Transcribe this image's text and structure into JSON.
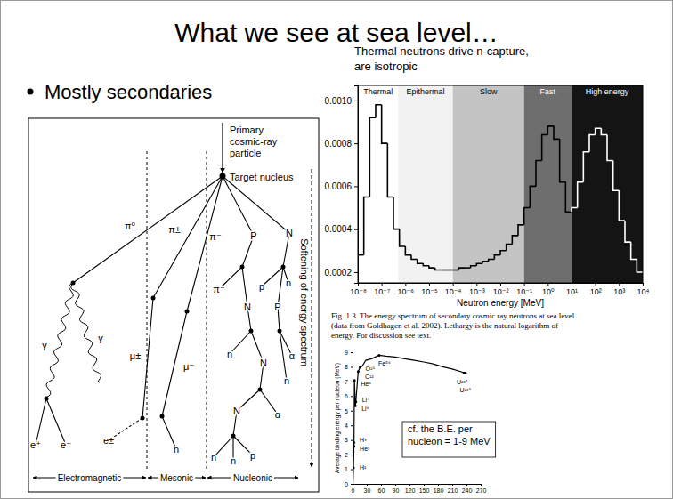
{
  "slide": {
    "title": "What we see at sea level…",
    "bullets": [
      "Mostly secondaries"
    ]
  },
  "diagram": {
    "primary": [
      "Primary",
      "cosmic-ray",
      "particle"
    ],
    "target": "Target nucleus",
    "side_label": "Softening of energy spectrum",
    "columns": [
      "Electromagnetic",
      "Mesonic",
      "Nucleonic"
    ],
    "particles": [
      "π⁰",
      "π±",
      "π⁻",
      "γ",
      "γ",
      "e⁺",
      "e⁻",
      "μ±",
      "μ⁻",
      "e±",
      "n",
      "P",
      "N",
      "π⁻",
      "N",
      "p",
      "n",
      "P",
      "N",
      "n",
      "α",
      "n",
      "N",
      "α",
      "n",
      "n",
      "p"
    ]
  },
  "chart_data": [
    {
      "type": "histogram",
      "title": [
        "Thermal neutrons drive n-capture,",
        "are isotropic"
      ],
      "x_label": "Neutron energy [MeV]",
      "caption": [
        "Fig. 1.3. The energy spectrum of secondary cosmic ray neutrons at sea level",
        "(data from Goldhagen et al. 2002). Lethargy is the natural logarithm of",
        "energy. For discussion see text."
      ],
      "log": "x",
      "bins": [
        1e-08,
        1.778e-08,
        3.162e-08,
        5.623e-08,
        1e-07,
        1.778e-07,
        3.162e-07,
        5.623e-07,
        1e-06,
        1.778e-06,
        3.162e-06,
        5.623e-06,
        1e-05,
        1.778e-05,
        3.162e-05,
        5.623e-05,
        0.0001,
        0.0001778,
        0.0003162,
        0.0005623,
        0.001,
        0.001778,
        0.003162,
        0.005623,
        0.01,
        0.01778,
        0.03162,
        0.05623,
        0.1,
        0.1778,
        0.3162,
        0.5623,
        1,
        1.778,
        3.162,
        5.623,
        10,
        17.78,
        31.62,
        56.23,
        100,
        177.8,
        316.2,
        562.3,
        1000,
        1778,
        3162,
        5623,
        10000
      ],
      "values": [
        0.00028,
        0.00055,
        0.00092,
        0.00098,
        0.0008,
        0.00055,
        0.0004,
        0.00032,
        0.00028,
        0.00026,
        0.00024,
        0.00023,
        0.00022,
        0.00021,
        0.00021,
        0.00021,
        0.00021,
        0.00022,
        0.00022,
        0.00023,
        0.00024,
        0.00025,
        0.00026,
        0.00028,
        0.0003,
        0.00033,
        0.00037,
        0.00042,
        0.0005,
        0.0006,
        0.00072,
        0.00084,
        0.00088,
        0.00082,
        0.00062,
        0.00048,
        0.0005,
        0.00062,
        0.00076,
        0.00084,
        0.00087,
        0.00084,
        0.00072,
        0.00058,
        0.00044,
        0.00034,
        0.00026,
        0.0002
      ],
      "colors": [
        "#000000",
        "#000000",
        "#000000",
        "#000000",
        "#000000",
        "#000000",
        "#000000",
        "#000000",
        "#000000",
        "#000000",
        "#000000",
        "#000000",
        "#000000",
        "#000000",
        "#000000",
        "#000000",
        "#000000",
        "#000000",
        "#000000",
        "#000000",
        "#000000",
        "#000000",
        "#000000",
        "#000000",
        "#000000",
        "#000000",
        "#000000",
        "#000000",
        "#000000",
        "#000000",
        "#000000",
        "#000000",
        "#000000",
        "#000000",
        "#000000",
        "#000000",
        "#ffffff",
        "#ffffff",
        "#ffffff",
        "#ffffff",
        "#ffffff",
        "#ffffff",
        "#ffffff",
        "#ffffff",
        "#ffffff",
        "#ffffff",
        "#ffffff",
        "#ffffff"
      ],
      "xlim": [
        1e-08,
        10000
      ],
      "xticks": [
        {
          "value": 1e-08,
          "label": "10⁻⁸"
        },
        {
          "value": 1e-07,
          "label": "10⁻⁷"
        },
        {
          "value": 1e-06,
          "label": "10⁻⁶"
        },
        {
          "value": 1e-05,
          "label": "10⁻⁵"
        },
        {
          "value": 0.0001,
          "label": "10⁻⁴"
        },
        {
          "value": 0.001,
          "label": "10⁻³"
        },
        {
          "value": 0.01,
          "label": "10⁻²"
        },
        {
          "value": 0.1,
          "label": "10⁻¹"
        },
        {
          "value": 1,
          "label": "10⁰"
        },
        {
          "value": 10,
          "label": "10¹"
        },
        {
          "value": 100,
          "label": "10²"
        },
        {
          "value": 1000,
          "label": "10³"
        },
        {
          "value": 10000,
          "label": "10⁴"
        }
      ],
      "ylim": [
        0.00015,
        0.00107
      ],
      "yticks": [
        0.0002,
        0.0004,
        0.0006,
        0.0008,
        {
          "value": 0.001,
          "label": "0.0010"
        }
      ],
      "regions": [
        {
          "label": "Thermal",
          "from": 1e-08,
          "to": 5e-07,
          "color": "#ffffff"
        },
        {
          "label": "Epithermal",
          "from": 5e-07,
          "to": 0.0001,
          "color": "#f2f2f2"
        },
        {
          "label": "Slow",
          "from": 0.0001,
          "to": 0.1,
          "color": "#c4c4c4"
        },
        {
          "label": "Fast",
          "from": 0.1,
          "to": 10,
          "color": "#6e6e6e"
        },
        {
          "label": "High energy",
          "from": 10,
          "to": 10000,
          "color": "#141414"
        }
      ]
    },
    {
      "type": "line",
      "y_label": "Average binding energy per nucleon (MeV)",
      "x": [
        1,
        2,
        3,
        4,
        6,
        7,
        9,
        12,
        16,
        20,
        28,
        40,
        56,
        70,
        90,
        110,
        130,
        150,
        170,
        190,
        210,
        238
      ],
      "values": [
        0,
        1.11,
        2.57,
        7.07,
        5.33,
        5.61,
        6.46,
        7.68,
        7.98,
        8.03,
        8.45,
        8.55,
        8.79,
        8.73,
        8.67,
        8.55,
        8.45,
        8.33,
        8.2,
        8.0,
        7.85,
        7.57
      ],
      "color": "#000000",
      "xlim": [
        0,
        270
      ],
      "xticks": [
        0,
        30,
        60,
        90,
        120,
        150,
        180,
        210,
        240,
        270
      ],
      "ylim": [
        0,
        9
      ],
      "yticks": [
        0,
        1,
        2,
        3,
        4,
        5,
        6,
        7,
        8,
        9
      ],
      "annotations": [
        {
          "text": "H²",
          "x": 2,
          "y": 1.11
        },
        {
          "text": "H³",
          "x": 3,
          "y": 2.83
        },
        {
          "text": "He³",
          "x": 3,
          "y": 2.57
        },
        {
          "text": "He⁴",
          "x": 4,
          "y": 7.07
        },
        {
          "text": "Li⁶",
          "x": 6,
          "y": 5.33
        },
        {
          "text": "Li⁷",
          "x": 7,
          "y": 5.61
        },
        {
          "text": "C¹²",
          "x": 12,
          "y": 7.68
        },
        {
          "text": "O¹⁶",
          "x": 16,
          "y": 7.98
        },
        {
          "text": "Fe⁵⁶",
          "x": 56,
          "y": 8.79
        },
        {
          "text": "U²³⁵",
          "x": 235,
          "y": 7.59
        },
        {
          "text": "U²³⁸",
          "x": 238,
          "y": 7.57
        }
      ],
      "text_box": [
        "cf. the B.E. per",
        "nucleon = 1-9 MeV"
      ]
    }
  ]
}
